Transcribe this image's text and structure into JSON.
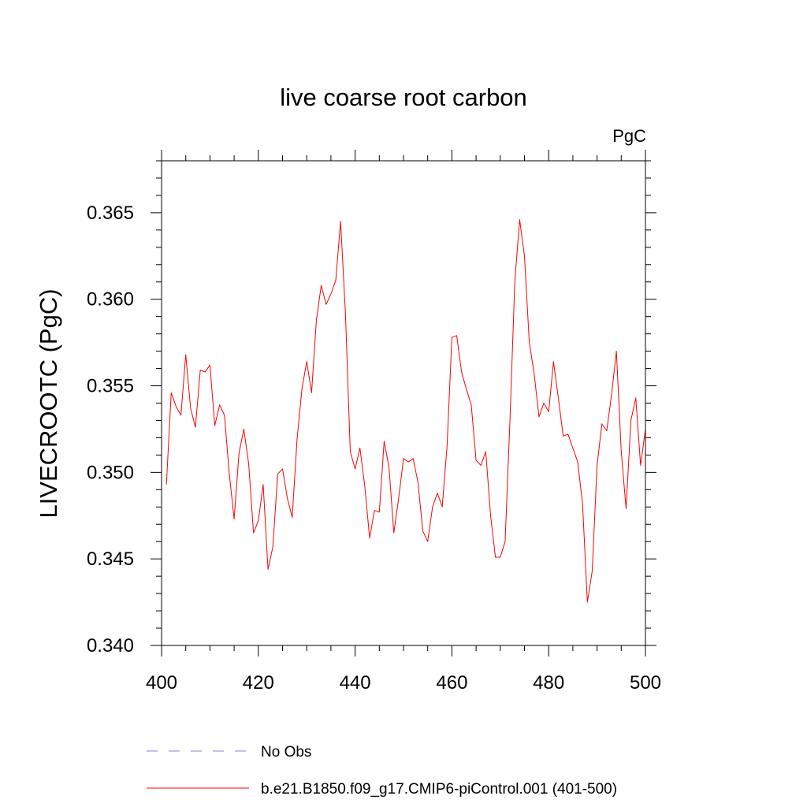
{
  "chart_data": {
    "type": "line",
    "title": "live coarse root carbon",
    "units_label": "PgC",
    "xlabel": "",
    "ylabel": "LIVECROOTC  (PgC)",
    "xlim": [
      400,
      500
    ],
    "ylim": [
      0.34,
      0.368
    ],
    "x_ticks": [
      400,
      420,
      440,
      460,
      480,
      500
    ],
    "x_tick_labels": [
      "400",
      "420",
      "440",
      "460",
      "480",
      "500"
    ],
    "y_ticks": [
      0.34,
      0.345,
      0.35,
      0.355,
      0.36,
      0.365
    ],
    "y_tick_labels": [
      "0.340",
      "0.345",
      "0.350",
      "0.355",
      "0.360",
      "0.365"
    ],
    "grid": false,
    "legend_position": "bottom",
    "series": [
      {
        "name": "b.e21.B1850.f09_g17.CMIP6-piControl.001 (401-500)",
        "color": "#ff0000",
        "style": "solid",
        "x": [
          401,
          402,
          403,
          404,
          405,
          406,
          407,
          408,
          409,
          410,
          411,
          412,
          413,
          414,
          415,
          416,
          417,
          418,
          419,
          420,
          421,
          422,
          423,
          424,
          425,
          426,
          427,
          428,
          429,
          430,
          431,
          432,
          433,
          434,
          435,
          436,
          437,
          438,
          439,
          440,
          441,
          442,
          443,
          444,
          445,
          446,
          447,
          448,
          449,
          450,
          451,
          452,
          453,
          454,
          455,
          456,
          457,
          458,
          459,
          460,
          461,
          462,
          463,
          464,
          465,
          466,
          467,
          468,
          469,
          470,
          471,
          472,
          473,
          474,
          475,
          476,
          477,
          478,
          479,
          480,
          481,
          482,
          483,
          484,
          485,
          486,
          487,
          488,
          489,
          490,
          491,
          492,
          493,
          494,
          495,
          496,
          497,
          498,
          499,
          500
        ],
        "values": [
          0.3493,
          0.3546,
          0.3538,
          0.3533,
          0.3568,
          0.3537,
          0.3526,
          0.3559,
          0.3558,
          0.3562,
          0.3527,
          0.3539,
          0.3533,
          0.3499,
          0.3473,
          0.3511,
          0.3525,
          0.3505,
          0.3465,
          0.3472,
          0.3493,
          0.3444,
          0.3457,
          0.3499,
          0.3502,
          0.3485,
          0.3474,
          0.3519,
          0.3548,
          0.3564,
          0.3546,
          0.3588,
          0.3608,
          0.3597,
          0.3603,
          0.3611,
          0.3645,
          0.3592,
          0.3512,
          0.3502,
          0.3514,
          0.3492,
          0.3462,
          0.3478,
          0.3477,
          0.3518,
          0.3503,
          0.3465,
          0.3485,
          0.3508,
          0.3506,
          0.3508,
          0.3494,
          0.3466,
          0.346,
          0.348,
          0.3488,
          0.348,
          0.3515,
          0.3578,
          0.3579,
          0.3558,
          0.3548,
          0.3539,
          0.3507,
          0.3504,
          0.3512,
          0.3475,
          0.3451,
          0.3451,
          0.346,
          0.353,
          0.361,
          0.3646,
          0.3625,
          0.3575,
          0.3557,
          0.3532,
          0.354,
          0.3535,
          0.3564,
          0.3543,
          0.3521,
          0.3522,
          0.3514,
          0.3506,
          0.3482,
          0.3425,
          0.3443,
          0.3504,
          0.3528,
          0.3524,
          0.3545,
          0.357,
          0.3512,
          0.3479,
          0.353,
          0.3543,
          0.3504,
          0.3525
        ]
      },
      {
        "name": "No Obs",
        "color": "#8c82c8",
        "style": "dashed",
        "x": [],
        "values": []
      }
    ]
  }
}
